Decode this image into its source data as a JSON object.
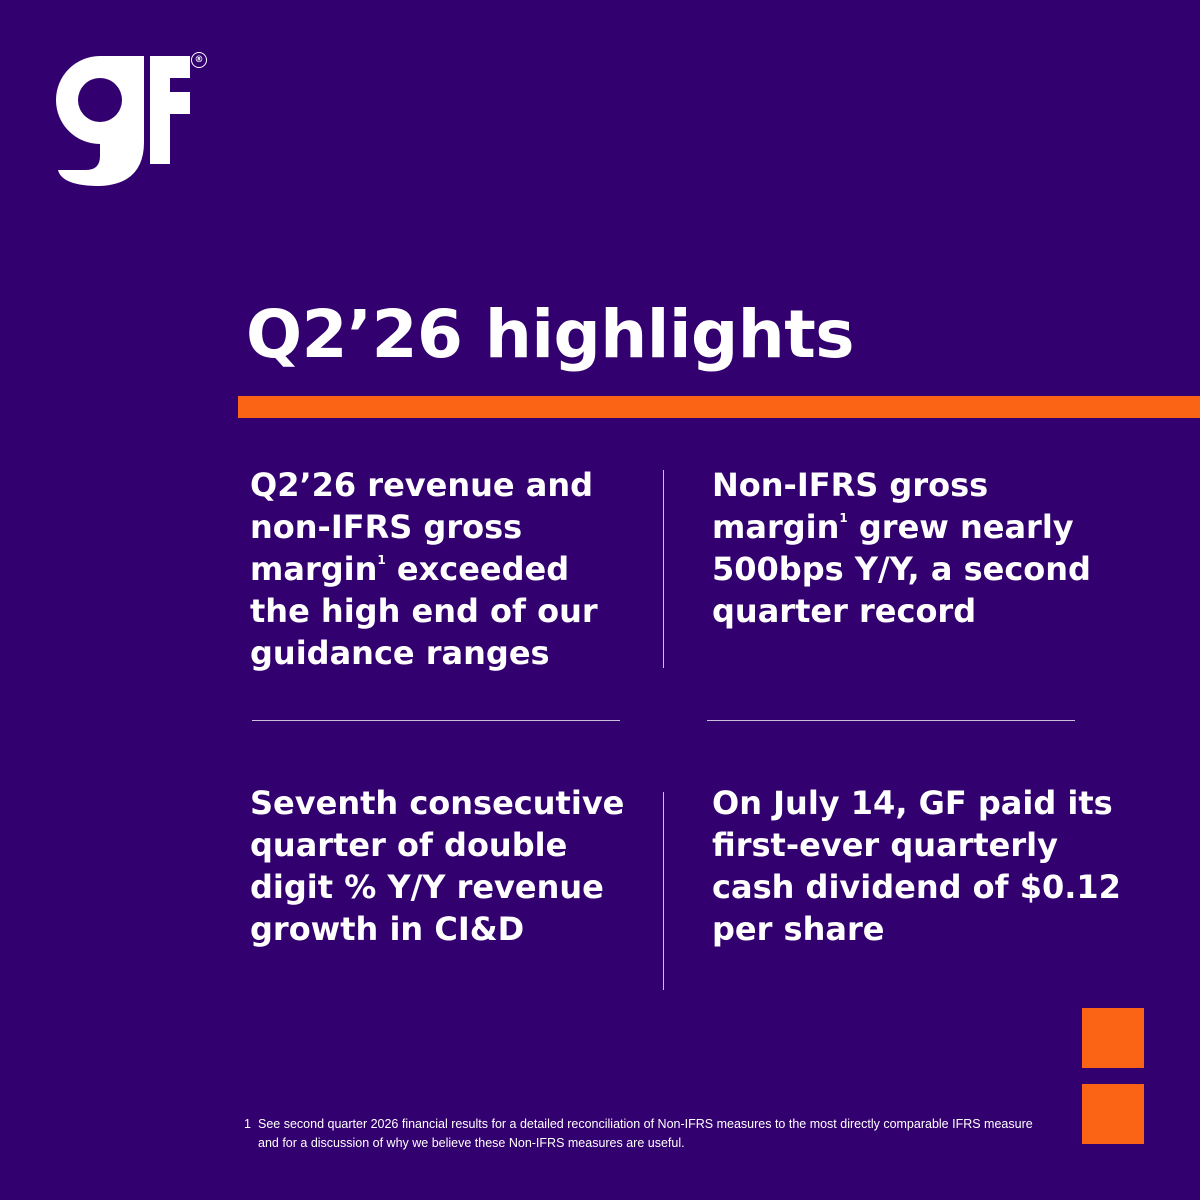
{
  "colors": {
    "background": "#33006f",
    "accent": "#fa6414",
    "text": "#ffffff"
  },
  "brand": {
    "logo_icon": "gf-logo-icon",
    "logo_lettering": "gF",
    "registered_mark": "®"
  },
  "title": "Q2’26 highlights",
  "highlights": [
    {
      "before": "Q2’26 revenue and non-IFRS gross margin",
      "sup": "1",
      "after": " exceeded the high end of our guidance ranges"
    },
    {
      "before": "Non-IFRS gross margin",
      "sup": "1",
      "after": " grew nearly 500bps Y/Y, a second quarter record"
    },
    {
      "before": "Seventh consecutive quarter of double digit % Y/Y revenue growth in CI&D",
      "sup": "",
      "after": ""
    },
    {
      "before": "On July 14, GF paid its first-ever quarterly cash dividend of $0.12 per share",
      "sup": "",
      "after": ""
    }
  ],
  "footnote": {
    "marker": "1",
    "text": "See second quarter 2026 financial results for a detailed reconciliation of Non-IFRS measures to the most directly comparable IFRS measure and for a discussion of why we believe these Non-IFRS measures are useful."
  }
}
